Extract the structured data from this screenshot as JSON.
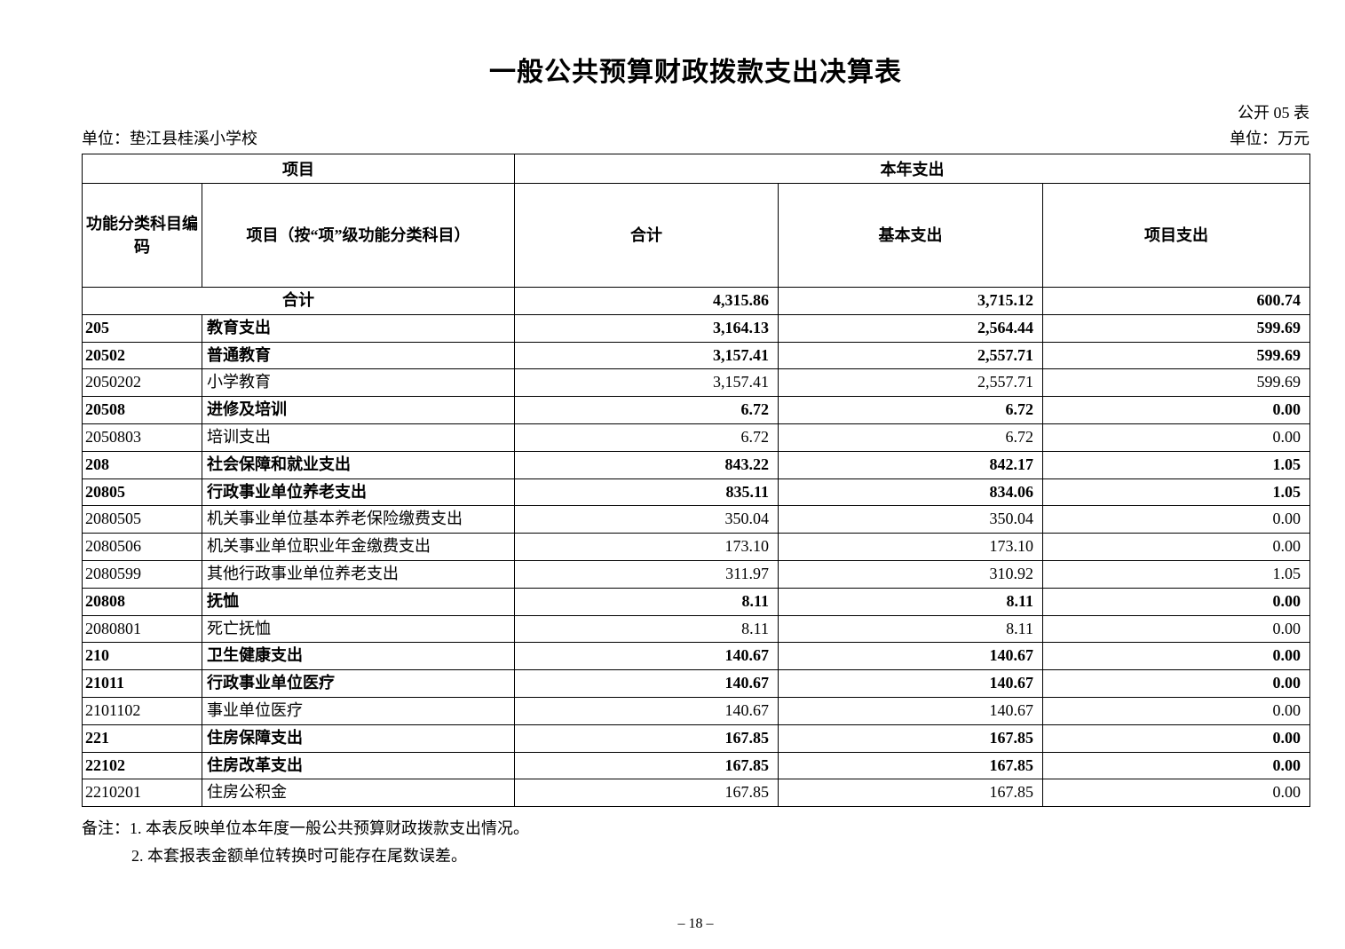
{
  "page": {
    "title": "一般公共预算财政拨款支出决算表",
    "form_code": "公开 05 表",
    "unit_name_label": "单位：垫江县桂溪小学校",
    "unit_money_label": "单位：万元",
    "page_number": "– 18 –"
  },
  "colors": {
    "background": "#ffffff",
    "text": "#000000",
    "border": "#000000"
  },
  "table": {
    "header": {
      "group_left": "项目",
      "group_right": "本年支出",
      "col_code": "功能分类科目编码",
      "col_item": "项目（按“项”级功能分类科目）",
      "col_total": "合计",
      "col_basic": "基本支出",
      "col_project": "项目支出"
    },
    "rows": [
      {
        "code": "",
        "name": "合计",
        "total": "4,315.86",
        "basic": "3,715.12",
        "project": "600.74",
        "bold": true,
        "merged": true
      },
      {
        "code": "205",
        "name": "教育支出",
        "total": "3,164.13",
        "basic": "2,564.44",
        "project": "599.69",
        "bold": true,
        "merged": false
      },
      {
        "code": "20502",
        "name": "普通教育",
        "total": "3,157.41",
        "basic": "2,557.71",
        "project": "599.69",
        "bold": true,
        "merged": false
      },
      {
        "code": "2050202",
        "name": "小学教育",
        "total": "3,157.41",
        "basic": "2,557.71",
        "project": "599.69",
        "bold": false,
        "merged": false
      },
      {
        "code": "20508",
        "name": "进修及培训",
        "total": "6.72",
        "basic": "6.72",
        "project": "0.00",
        "bold": true,
        "merged": false
      },
      {
        "code": "2050803",
        "name": "培训支出",
        "total": "6.72",
        "basic": "6.72",
        "project": "0.00",
        "bold": false,
        "merged": false
      },
      {
        "code": "208",
        "name": "社会保障和就业支出",
        "total": "843.22",
        "basic": "842.17",
        "project": "1.05",
        "bold": true,
        "merged": false
      },
      {
        "code": "20805",
        "name": "行政事业单位养老支出",
        "total": "835.11",
        "basic": "834.06",
        "project": "1.05",
        "bold": true,
        "merged": false
      },
      {
        "code": "2080505",
        "name": "机关事业单位基本养老保险缴费支出",
        "total": "350.04",
        "basic": "350.04",
        "project": "0.00",
        "bold": false,
        "merged": false
      },
      {
        "code": "2080506",
        "name": "机关事业单位职业年金缴费支出",
        "total": "173.10",
        "basic": "173.10",
        "project": "0.00",
        "bold": false,
        "merged": false
      },
      {
        "code": "2080599",
        "name": "其他行政事业单位养老支出",
        "total": "311.97",
        "basic": "310.92",
        "project": "1.05",
        "bold": false,
        "merged": false
      },
      {
        "code": "20808",
        "name": "抚恤",
        "total": "8.11",
        "basic": "8.11",
        "project": "0.00",
        "bold": true,
        "merged": false
      },
      {
        "code": "2080801",
        "name": "死亡抚恤",
        "total": "8.11",
        "basic": "8.11",
        "project": "0.00",
        "bold": false,
        "merged": false
      },
      {
        "code": "210",
        "name": "卫生健康支出",
        "total": "140.67",
        "basic": "140.67",
        "project": "0.00",
        "bold": true,
        "merged": false
      },
      {
        "code": "21011",
        "name": "行政事业单位医疗",
        "total": "140.67",
        "basic": "140.67",
        "project": "0.00",
        "bold": true,
        "merged": false
      },
      {
        "code": "2101102",
        "name": "事业单位医疗",
        "total": "140.67",
        "basic": "140.67",
        "project": "0.00",
        "bold": false,
        "merged": false
      },
      {
        "code": "221",
        "name": "住房保障支出",
        "total": "167.85",
        "basic": "167.85",
        "project": "0.00",
        "bold": true,
        "merged": false
      },
      {
        "code": "22102",
        "name": "住房改革支出",
        "total": "167.85",
        "basic": "167.85",
        "project": "0.00",
        "bold": true,
        "merged": false
      },
      {
        "code": "2210201",
        "name": "住房公积金",
        "total": "167.85",
        "basic": "167.85",
        "project": "0.00",
        "bold": false,
        "merged": false
      }
    ]
  },
  "notes": {
    "line1": "备注：1. 本表反映单位本年度一般公共预算财政拨款支出情况。",
    "line2": "2. 本套报表金额单位转换时可能存在尾数误差。"
  }
}
